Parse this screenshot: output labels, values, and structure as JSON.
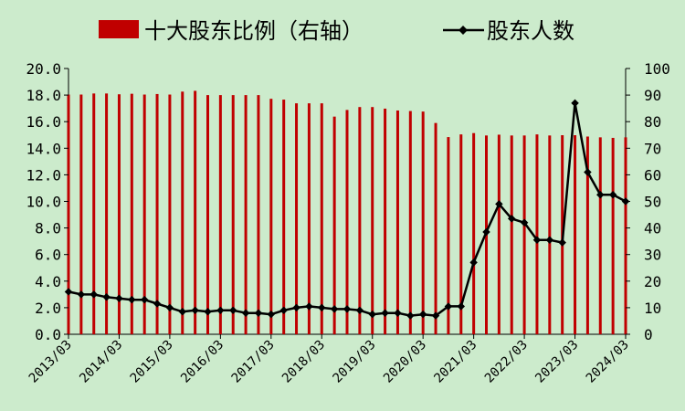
{
  "chart_data": {
    "type": "bar+line",
    "legend": {
      "bar_label": "十大股东比例（右轴）",
      "line_label": "股东人数",
      "position": "top"
    },
    "colors": {
      "bar": "#c00000",
      "line": "#000000",
      "background": "#ccebcc"
    },
    "left_axis": {
      "ylim": [
        0,
        20
      ],
      "ticks": [
        "0.0",
        "2.0",
        "4.0",
        "6.0",
        "8.0",
        "10.0",
        "12.0",
        "14.0",
        "16.0",
        "18.0",
        "20.0"
      ]
    },
    "right_axis": {
      "ylim": [
        0,
        100
      ],
      "ticks": [
        "0",
        "10",
        "20",
        "30",
        "40",
        "50",
        "60",
        "70",
        "80",
        "90",
        "100"
      ]
    },
    "x_tick_labels": [
      "2013/03",
      "2014/03",
      "2015/03",
      "2016/03",
      "2017/03",
      "2018/03",
      "2019/03",
      "2020/03",
      "2021/03",
      "2022/03",
      "2023/03",
      "2024/03"
    ],
    "x_periods": [
      "2013/03",
      "2013/06",
      "2013/09",
      "2013/12",
      "2014/03",
      "2014/06",
      "2014/09",
      "2014/12",
      "2015/03",
      "2015/06",
      "2015/09",
      "2015/12",
      "2016/03",
      "2016/06",
      "2016/09",
      "2016/12",
      "2017/03",
      "2017/06",
      "2017/09",
      "2017/12",
      "2018/03",
      "2018/06",
      "2018/09",
      "2018/12",
      "2019/03",
      "2019/06",
      "2019/09",
      "2019/12",
      "2020/03",
      "2020/06",
      "2020/09",
      "2020/12",
      "2021/03",
      "2021/06",
      "2021/09",
      "2021/12",
      "2022/03",
      "2022/06",
      "2022/09",
      "2022/12",
      "2023/03",
      "2023/06",
      "2023/09",
      "2023/12",
      "2024/03"
    ],
    "series": [
      {
        "name": "十大股东比例（右轴）",
        "type": "bar",
        "axis": "right",
        "values": [
          90.2,
          90.2,
          90.6,
          90.6,
          90.3,
          90.5,
          90.2,
          90.4,
          90.2,
          91.3,
          91.6,
          90.0,
          90.0,
          90.0,
          90.0,
          90.0,
          88.6,
          88.3,
          86.9,
          86.9,
          86.9,
          81.9,
          84.4,
          85.5,
          85.5,
          84.9,
          84.2,
          84.0,
          83.8,
          79.5,
          74.2,
          75.2,
          75.7,
          74.8,
          75.1,
          74.8,
          74.8,
          75.2,
          74.8,
          74.9,
          74.9,
          74.4,
          74.1,
          73.9,
          74.1
        ]
      },
      {
        "name": "股东人数",
        "type": "line",
        "axis": "left",
        "values": [
          3.2,
          3.0,
          3.0,
          2.8,
          2.7,
          2.6,
          2.6,
          2.3,
          2.0,
          1.7,
          1.8,
          1.7,
          1.8,
          1.8,
          1.6,
          1.6,
          1.5,
          1.8,
          2.0,
          2.1,
          2.0,
          1.9,
          1.9,
          1.8,
          1.5,
          1.6,
          1.6,
          1.4,
          1.5,
          1.4,
          2.1,
          2.1,
          5.4,
          7.7,
          9.8,
          8.7,
          8.4,
          7.1,
          7.1,
          6.9,
          17.4,
          12.2,
          10.5,
          10.5,
          10.0
        ]
      }
    ]
  }
}
